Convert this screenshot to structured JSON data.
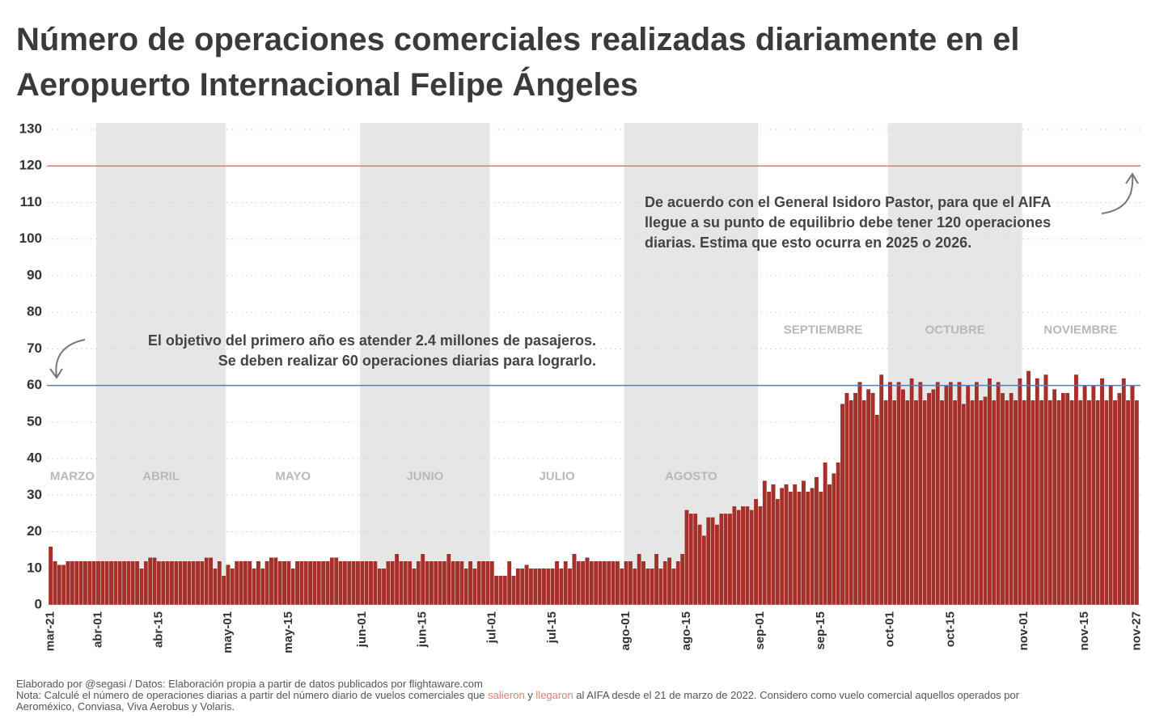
{
  "chart_data": {
    "type": "bar",
    "title": [
      "Número de operaciones comerciales realizadas diariamente en el",
      "Aeropuerto Internacional Felipe Ángeles"
    ],
    "categories": [
      "mar-21",
      null,
      null,
      null,
      null,
      null,
      null,
      null,
      null,
      null,
      null,
      "abr-01",
      null,
      null,
      null,
      null,
      null,
      null,
      null,
      null,
      null,
      null,
      null,
      null,
      null,
      "abr-15",
      null,
      null,
      null,
      null,
      null,
      null,
      null,
      null,
      null,
      null,
      null,
      null,
      null,
      null,
      null,
      "may-01",
      null,
      null,
      null,
      null,
      null,
      null,
      null,
      null,
      null,
      null,
      null,
      null,
      null,
      "may-15",
      null,
      null,
      null,
      null,
      null,
      null,
      null,
      null,
      null,
      null,
      null,
      null,
      null,
      null,
      null,
      null,
      "jun-01",
      null,
      null,
      null,
      null,
      null,
      null,
      null,
      null,
      null,
      null,
      null,
      null,
      null,
      "jun-15",
      null,
      null,
      null,
      null,
      null,
      null,
      null,
      null,
      null,
      null,
      null,
      null,
      null,
      null,
      null,
      "jul-01",
      null,
      null,
      null,
      null,
      null,
      null,
      null,
      null,
      null,
      null,
      null,
      null,
      null,
      "jul-15",
      null,
      null,
      null,
      null,
      null,
      null,
      null,
      null,
      null,
      null,
      null,
      null,
      null,
      null,
      null,
      null,
      "ago-01",
      null,
      null,
      null,
      null,
      null,
      null,
      null,
      null,
      null,
      null,
      null,
      null,
      null,
      "ago-15",
      null,
      null,
      null,
      null,
      null,
      null,
      null,
      null,
      null,
      null,
      null,
      null,
      null,
      null,
      null,
      null,
      "sep-01",
      null,
      null,
      null,
      null,
      null,
      null,
      null,
      null,
      null,
      null,
      null,
      null,
      null,
      "sep-15",
      null,
      null,
      null,
      null,
      null,
      null,
      null,
      null,
      null,
      null,
      null,
      null,
      null,
      null,
      null,
      "oct-01",
      null,
      null,
      null,
      null,
      null,
      null,
      null,
      null,
      null,
      null,
      null,
      null,
      null,
      "oct-15",
      null,
      null,
      null,
      null,
      null,
      null,
      null,
      null,
      null,
      null,
      null,
      null,
      null,
      null,
      null,
      null,
      "nov-01",
      null,
      null,
      null,
      null,
      null,
      null,
      null,
      null,
      null,
      null,
      null,
      null,
      null,
      "nov-15",
      null,
      null,
      null,
      null,
      null,
      null,
      null,
      null,
      null,
      null,
      null,
      "nov-27"
    ],
    "values": [
      16,
      12,
      11,
      11,
      12,
      12,
      12,
      12,
      12,
      12,
      12,
      12,
      12,
      12,
      12,
      12,
      12,
      12,
      12,
      12,
      12,
      10,
      12,
      13,
      13,
      12,
      12,
      12,
      12,
      12,
      12,
      12,
      12,
      12,
      12,
      12,
      13,
      13,
      10,
      12,
      8,
      11,
      10,
      12,
      12,
      12,
      12,
      10,
      12,
      10,
      12,
      13,
      13,
      12,
      12,
      12,
      10,
      12,
      12,
      12,
      12,
      12,
      12,
      12,
      12,
      13,
      13,
      12,
      12,
      12,
      12,
      12,
      12,
      12,
      12,
      12,
      10,
      10,
      12,
      12,
      14,
      12,
      12,
      12,
      10,
      12,
      14,
      12,
      12,
      12,
      12,
      12,
      14,
      12,
      12,
      12,
      10,
      12,
      10,
      12,
      12,
      12,
      12,
      8,
      8,
      8,
      12,
      8,
      10,
      10,
      11,
      10,
      10,
      10,
      10,
      10,
      10,
      12,
      10,
      12,
      10,
      14,
      12,
      12,
      13,
      12,
      12,
      12,
      12,
      12,
      12,
      12,
      10,
      12,
      12,
      10,
      14,
      12,
      10,
      10,
      14,
      10,
      12,
      13,
      10,
      12,
      14,
      26,
      25,
      25,
      22,
      19,
      24,
      24,
      22,
      25,
      25,
      25,
      27,
      26,
      27,
      27,
      26,
      29,
      27,
      34,
      31,
      33,
      29,
      32,
      33,
      31,
      33,
      31,
      34,
      31,
      32,
      35,
      31,
      39,
      33,
      36,
      39,
      55,
      58,
      56,
      58,
      61,
      56,
      59,
      58,
      52,
      63,
      56,
      61,
      56,
      61,
      59,
      56,
      62,
      56,
      61,
      56,
      58,
      59,
      61,
      56,
      60,
      61,
      56,
      61,
      55,
      60,
      56,
      61,
      56,
      57,
      62,
      56,
      61,
      58,
      56,
      58,
      56,
      62,
      56,
      64,
      56,
      62,
      56,
      63,
      56,
      59,
      56,
      58,
      58,
      56,
      63,
      56,
      60,
      56,
      60,
      56,
      62,
      56,
      60,
      56,
      58,
      62,
      56,
      60,
      56
    ],
    "color": "#a5302a",
    "ylim": [
      0,
      130
    ],
    "yticks": [
      0,
      10,
      20,
      30,
      40,
      50,
      60,
      70,
      80,
      90,
      100,
      110,
      120,
      130
    ],
    "grid": true,
    "months": [
      {
        "label": "MARZO",
        "start": 0,
        "shaded": false
      },
      {
        "label": "ABRIL",
        "start": 11,
        "shaded": true
      },
      {
        "label": "MAYO",
        "start": 41,
        "shaded": false
      },
      {
        "label": "JUNIO",
        "start": 72,
        "shaded": true
      },
      {
        "label": "JULIO",
        "start": 102,
        "shaded": false
      },
      {
        "label": "AGOSTO",
        "start": 133,
        "shaded": true
      },
      {
        "label": "SEPTIEMBRE",
        "start": 164,
        "shaded": false
      },
      {
        "label": "OCTUBRE",
        "start": 194,
        "shaded": true
      },
      {
        "label": "NOVIEMBRE",
        "start": 225,
        "shaded": false
      }
    ],
    "reference_lines": [
      {
        "value": 60,
        "color": "#5b7db1",
        "annotation": [
          "El objetivo del primero año es atender 2.4 millones de pasajeros.",
          "Se deben realizar 60 operaciones diarias para lograrlo."
        ]
      },
      {
        "value": 120,
        "color": "#e07a6a",
        "annotation": [
          "De acuerdo con el General Isidoro Pastor, para que el AIFA",
          "llegue a su punto de equilibrio debe tener 120 operaciones",
          "diarias. Estima que esto ocurra en 2025 o 2026."
        ]
      }
    ],
    "footer": {
      "credit": "Elaborado por @segasi / Datos: Elaboración propia a partir de datos publicados por flightaware.com",
      "note": [
        "Nota: Calculé el número de operaciones diarias a partir del número diario de vuelos comerciales que ",
        "salieron",
        " y ",
        "llegaron",
        " al AIFA desde el 21 de marzo de 2022. Considero como vuelo comercial aquellos operados por"
      ],
      "continuation": "Aeroméxico, Conviasa, Viva Aerobus y Volaris."
    }
  }
}
